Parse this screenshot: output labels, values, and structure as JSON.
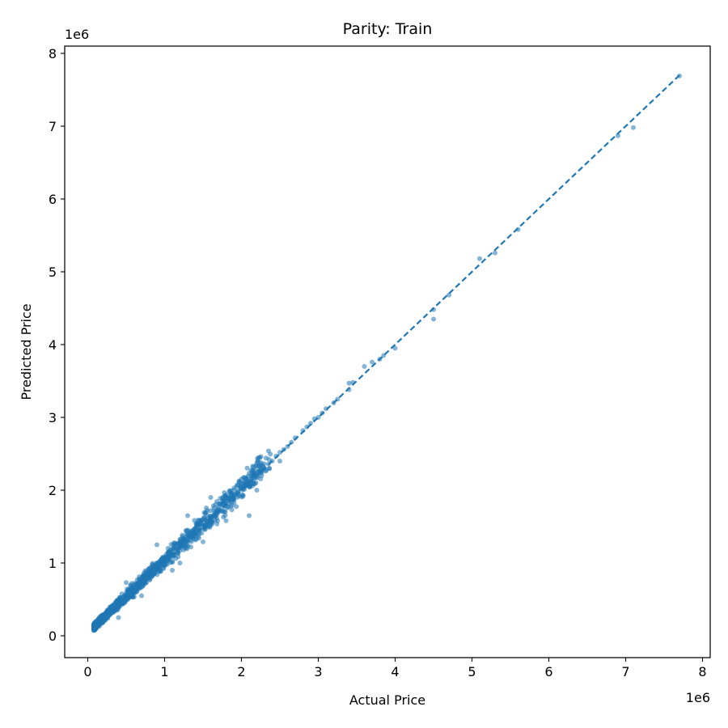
{
  "chart_data": {
    "type": "scatter",
    "title": "Parity: Train",
    "xlabel": "Actual Price",
    "ylabel": "Predicted Price",
    "x_offset_text": "1e6",
    "y_offset_text": "1e6",
    "xlim": [
      -300000,
      8100000
    ],
    "ylim": [
      -300000,
      8100000
    ],
    "x_ticks": [
      0,
      1000000,
      2000000,
      3000000,
      4000000,
      5000000,
      6000000,
      7000000,
      8000000
    ],
    "y_ticks": [
      0,
      1000000,
      2000000,
      3000000,
      4000000,
      5000000,
      6000000,
      7000000,
      8000000
    ],
    "x_tick_labels": [
      "0",
      "1",
      "2",
      "3",
      "4",
      "5",
      "6",
      "7",
      "8"
    ],
    "y_tick_labels": [
      "0",
      "1",
      "2",
      "3",
      "4",
      "5",
      "6",
      "7",
      "8"
    ],
    "grid": false,
    "marker_color": "#1f77b4",
    "reference_line": {
      "style": "dashed",
      "color": "#1f77b4",
      "from": [
        80000,
        80000
      ],
      "to": [
        7700000,
        7700000
      ]
    },
    "points": {
      "x": [
        80000,
        100000,
        130000,
        160000,
        180000,
        200000,
        220000,
        250000,
        280000,
        300000,
        320000,
        350000,
        380000,
        400000,
        420000,
        450000,
        480000,
        500000,
        520000,
        550000,
        580000,
        600000,
        620000,
        650000,
        680000,
        700000,
        720000,
        750000,
        780000,
        800000,
        820000,
        850000,
        880000,
        900000,
        920000,
        950000,
        980000,
        1000000,
        1020000,
        1050000,
        1080000,
        1100000,
        1120000,
        1150000,
        1180000,
        1200000,
        1250000,
        1300000,
        1350000,
        1400000,
        1450000,
        1500000,
        1550000,
        1600000,
        1650000,
        1700000,
        1750000,
        1800000,
        1850000,
        1900000,
        1950000,
        2000000,
        2050000,
        2100000,
        2150000,
        2200000,
        2250000,
        2300000,
        2350000,
        2400000,
        2450000,
        2500000,
        2550000,
        2600000,
        2650000,
        2700000,
        2800000,
        2850000,
        2900000,
        2950000,
        3000000,
        3050000,
        3100000,
        3200000,
        3250000,
        3400000,
        3400000,
        3450000,
        3600000,
        3700000,
        3800000,
        3850000,
        4000000,
        4500000,
        4500000,
        4700000,
        5100000,
        5300000,
        5600000,
        6900000,
        7100000,
        7700000,
        300000,
        500000,
        700000,
        900000,
        1100000,
        1300000,
        1500000,
        1800000,
        2100000,
        2500000,
        2200000,
        1600000,
        1200000,
        260000,
        400000,
        1000000
      ],
      "y": [
        110000,
        130000,
        150000,
        180000,
        190000,
        230000,
        250000,
        270000,
        300000,
        320000,
        330000,
        360000,
        400000,
        410000,
        430000,
        470000,
        490000,
        520000,
        530000,
        560000,
        600000,
        610000,
        640000,
        660000,
        690000,
        720000,
        730000,
        760000,
        790000,
        810000,
        840000,
        860000,
        900000,
        910000,
        930000,
        970000,
        1000000,
        1010000,
        1040000,
        1060000,
        1100000,
        1110000,
        1140000,
        1160000,
        1200000,
        1210000,
        1260000,
        1300000,
        1370000,
        1400000,
        1460000,
        1510000,
        1560000,
        1610000,
        1660000,
        1700000,
        1760000,
        1820000,
        1870000,
        1900000,
        1960000,
        2020000,
        2060000,
        2100000,
        2160000,
        2240000,
        2260000,
        2300000,
        2360000,
        2400000,
        2470000,
        2520000,
        2560000,
        2600000,
        2660000,
        2720000,
        2820000,
        2870000,
        2920000,
        2980000,
        3000000,
        3060000,
        3120000,
        3200000,
        3250000,
        3470000,
        3380000,
        3480000,
        3700000,
        3760000,
        3800000,
        3850000,
        3950000,
        4350000,
        4480000,
        4680000,
        5180000,
        5260000,
        5580000,
        6870000,
        6980000,
        7690000,
        360000,
        730000,
        550000,
        1250000,
        900000,
        1650000,
        1290000,
        1580000,
        1650000,
        2400000,
        2000000,
        1900000,
        1000000,
        240000,
        250000,
        1050000
      ]
    }
  }
}
